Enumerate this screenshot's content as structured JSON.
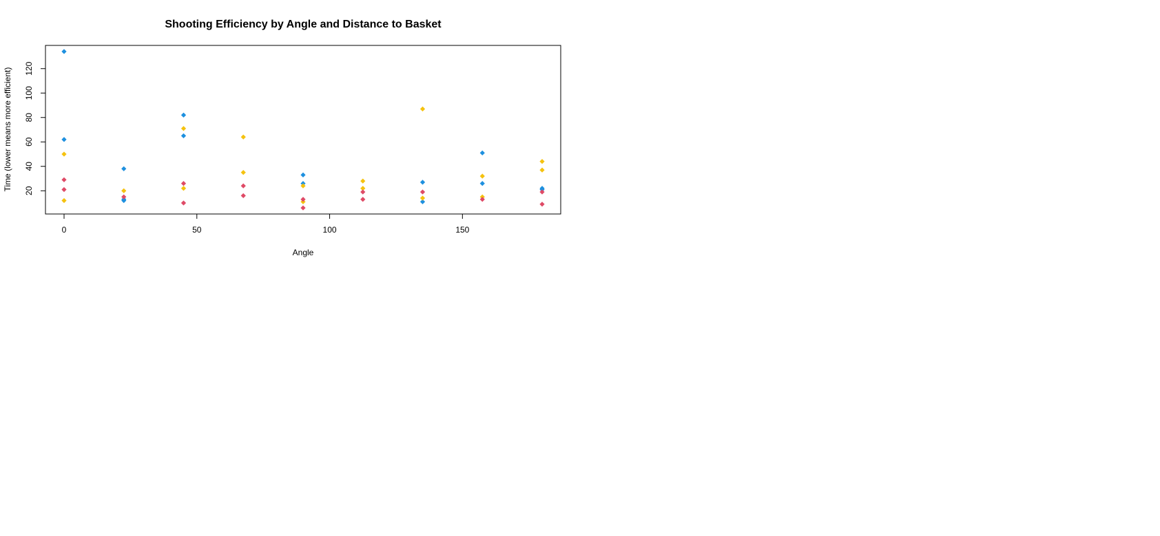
{
  "chart_data": {
    "type": "scatter",
    "title": "Shooting Efficiency by Angle and Distance to Basket",
    "xlabel": "Angle",
    "ylabel": "Time (lower means more efficient)",
    "xlim": [
      -7,
      187
    ],
    "ylim": [
      1,
      139
    ],
    "xticks": [
      0,
      50,
      100,
      150
    ],
    "yticks": [
      20,
      40,
      60,
      80,
      100,
      120
    ],
    "grid": false,
    "legend": null,
    "series": [
      {
        "color": "#1E90DF",
        "points": [
          [
            0,
            134
          ],
          [
            0,
            62
          ],
          [
            22.5,
            38
          ],
          [
            22.5,
            13
          ],
          [
            22.5,
            12
          ],
          [
            45,
            82
          ],
          [
            45,
            65
          ],
          [
            90,
            33
          ],
          [
            90,
            26
          ],
          [
            135,
            27
          ],
          [
            135,
            11
          ],
          [
            157.5,
            51
          ],
          [
            157.5,
            26
          ],
          [
            180,
            22
          ],
          [
            180,
            21
          ]
        ]
      },
      {
        "color": "#F5C20F",
        "points": [
          [
            0,
            50
          ],
          [
            0,
            12
          ],
          [
            22.5,
            20
          ],
          [
            45,
            71
          ],
          [
            45,
            22
          ],
          [
            67.5,
            64
          ],
          [
            67.5,
            35
          ],
          [
            90,
            24
          ],
          [
            90,
            11
          ],
          [
            112.5,
            28
          ],
          [
            112.5,
            22
          ],
          [
            135,
            87
          ],
          [
            135,
            14
          ],
          [
            157.5,
            32
          ],
          [
            157.5,
            15
          ],
          [
            180,
            44
          ],
          [
            180,
            37
          ]
        ]
      },
      {
        "color": "#DF4A66",
        "points": [
          [
            0,
            29
          ],
          [
            0,
            21
          ],
          [
            22.5,
            15
          ],
          [
            45,
            26
          ],
          [
            45,
            10
          ],
          [
            67.5,
            24
          ],
          [
            67.5,
            16
          ],
          [
            90,
            13
          ],
          [
            90,
            6
          ],
          [
            112.5,
            19
          ],
          [
            112.5,
            13
          ],
          [
            135,
            19
          ],
          [
            157.5,
            13
          ],
          [
            180,
            19
          ],
          [
            180,
            9
          ]
        ]
      }
    ]
  }
}
